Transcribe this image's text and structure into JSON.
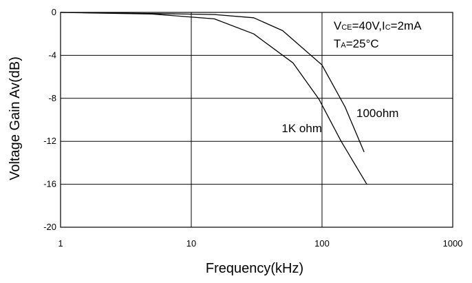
{
  "chart_data": {
    "type": "line",
    "xlabel": "Frequency(kHz)",
    "ylabel": "Voltage Gain Av(dB)",
    "xscale": "log",
    "xlim": [
      1,
      1000
    ],
    "ylim": [
      -20,
      0
    ],
    "x_ticks": [
      1,
      10,
      100,
      1000
    ],
    "x_tick_labels": [
      "1",
      "10",
      "100",
      "1000"
    ],
    "y_ticks": [
      0,
      -4,
      -8,
      -12,
      -16,
      -20
    ],
    "y_tick_labels": [
      "0",
      "-4",
      "-8",
      "-12",
      "-16",
      "-20"
    ],
    "grid": true,
    "conditions": {
      "line1": {
        "v": "V",
        "v_sub": "CE",
        "v_val": "=40V,",
        "i": "I",
        "i_sub": "C",
        "i_val": "=2mA"
      },
      "line2": {
        "t": "T",
        "t_sub": "A",
        "t_val": "=25°C"
      }
    },
    "series": [
      {
        "name": "100ohm",
        "x": [
          1,
          5,
          15,
          30,
          50,
          100,
          150,
          210
        ],
        "y": [
          0,
          -0.1,
          -0.2,
          -0.5,
          -1.7,
          -4.9,
          -8.8,
          -13.0
        ]
      },
      {
        "name": "1K ohm",
        "x": [
          1,
          5,
          15,
          30,
          60,
          95,
          140,
          220
        ],
        "y": [
          0,
          -0.15,
          -0.6,
          -2.0,
          -4.7,
          -8.1,
          -12.0,
          -16.0
        ]
      }
    ]
  }
}
